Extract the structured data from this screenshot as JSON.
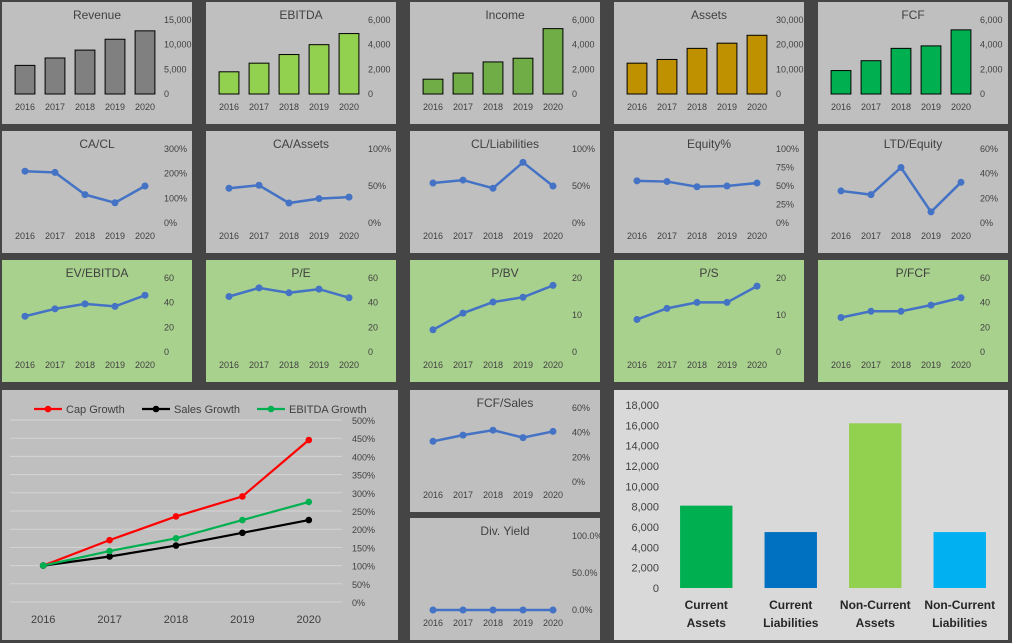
{
  "colors": {
    "gray_panel": "#bfbfbf",
    "green_panel": "#a9d18e",
    "light_panel": "#d9d9d9",
    "line_blue": "#4472c4",
    "bar_gray": "#808080",
    "bar_lightgreen": "#92d050",
    "bar_olive": "#70ad47",
    "bar_gold": "#bf9000",
    "bar_green": "#00b050"
  },
  "years": [
    "2016",
    "2017",
    "2018",
    "2019",
    "2020"
  ],
  "chart_data": [
    {
      "id": "revenue",
      "type": "bar",
      "title": "Revenue",
      "categories": [
        "2016",
        "2017",
        "2018",
        "2019",
        "2020"
      ],
      "values": [
        5800,
        7300,
        8900,
        11100,
        12800
      ],
      "ylim": [
        0,
        15000
      ],
      "ticks": [
        "0",
        "5,000",
        "10,000",
        "15,000"
      ],
      "color": "#808080"
    },
    {
      "id": "ebitda",
      "type": "bar",
      "title": "EBITDA",
      "categories": [
        "2016",
        "2017",
        "2018",
        "2019",
        "2020"
      ],
      "values": [
        1800,
        2500,
        3200,
        4000,
        4900
      ],
      "ylim": [
        0,
        6000
      ],
      "ticks": [
        "0",
        "2,000",
        "4,000",
        "6,000"
      ],
      "color": "#92d050"
    },
    {
      "id": "income",
      "type": "bar",
      "title": "Income",
      "categories": [
        "2016",
        "2017",
        "2018",
        "2019",
        "2020"
      ],
      "values": [
        1200,
        1700,
        2600,
        2900,
        5300
      ],
      "ylim": [
        0,
        6000
      ],
      "ticks": [
        "0",
        "2,000",
        "4,000",
        "6,000"
      ],
      "color": "#70ad47"
    },
    {
      "id": "assets",
      "type": "bar",
      "title": "Assets",
      "categories": [
        "2016",
        "2017",
        "2018",
        "2019",
        "2020"
      ],
      "values": [
        12500,
        14000,
        18500,
        20600,
        23800
      ],
      "ylim": [
        0,
        30000
      ],
      "ticks": [
        "0",
        "10,000",
        "20,000",
        "30,000"
      ],
      "color": "#bf9000"
    },
    {
      "id": "fcf",
      "type": "bar",
      "title": "FCF",
      "categories": [
        "2016",
        "2017",
        "2018",
        "2019",
        "2020"
      ],
      "values": [
        1900,
        2700,
        3700,
        3900,
        5200
      ],
      "ylim": [
        0,
        6000
      ],
      "ticks": [
        "0",
        "2,000",
        "4,000",
        "6,000"
      ],
      "color": "#00b050"
    },
    {
      "id": "ca_cl",
      "type": "line",
      "title": "CA/CL",
      "categories": [
        "2016",
        "2017",
        "2018",
        "2019",
        "2020"
      ],
      "values": [
        2.1,
        2.05,
        1.15,
        0.82,
        1.5
      ],
      "ylim": [
        0,
        3
      ],
      "ticks": [
        "0%",
        "100%",
        "200%",
        "300%"
      ],
      "color": "#4472c4"
    },
    {
      "id": "ca_assets",
      "type": "line",
      "title": "CA/Assets",
      "categories": [
        "2016",
        "2017",
        "2018",
        "2019",
        "2020"
      ],
      "values": [
        0.47,
        0.51,
        0.27,
        0.33,
        0.35
      ],
      "ylim": [
        0,
        1
      ],
      "ticks": [
        "0%",
        "50%",
        "100%"
      ],
      "color": "#4472c4"
    },
    {
      "id": "cl_liabilities",
      "type": "line",
      "title": "CL/Liabilities",
      "categories": [
        "2016",
        "2017",
        "2018",
        "2019",
        "2020"
      ],
      "values": [
        0.54,
        0.58,
        0.47,
        0.82,
        0.5
      ],
      "ylim": [
        0,
        1
      ],
      "ticks": [
        "0%",
        "50%",
        "100%"
      ],
      "color": "#4472c4"
    },
    {
      "id": "equity_pct",
      "type": "line",
      "title": "Equity%",
      "categories": [
        "2016",
        "2017",
        "2018",
        "2019",
        "2020"
      ],
      "values": [
        0.57,
        0.56,
        0.49,
        0.5,
        0.54
      ],
      "ylim": [
        0,
        1
      ],
      "ticks": [
        "0%",
        "25%",
        "50%",
        "75%",
        "100%"
      ],
      "color": "#4472c4"
    },
    {
      "id": "ltd_equity",
      "type": "line",
      "title": "LTD/Equity",
      "categories": [
        "2016",
        "2017",
        "2018",
        "2019",
        "2020"
      ],
      "values": [
        0.26,
        0.23,
        0.45,
        0.09,
        0.33
      ],
      "ylim": [
        0,
        0.6
      ],
      "ticks": [
        "0%",
        "20%",
        "40%",
        "60%"
      ],
      "color": "#4472c4"
    },
    {
      "id": "ev_ebitda",
      "type": "line",
      "title": "EV/EBITDA",
      "categories": [
        "2016",
        "2017",
        "2018",
        "2019",
        "2020"
      ],
      "values": [
        29,
        35,
        39,
        37,
        46
      ],
      "ylim": [
        0,
        60
      ],
      "ticks": [
        "0",
        "20",
        "40",
        "60"
      ],
      "color": "#4472c4"
    },
    {
      "id": "pe",
      "type": "line",
      "title": "P/E",
      "categories": [
        "2016",
        "2017",
        "2018",
        "2019",
        "2020"
      ],
      "values": [
        45,
        52,
        48,
        51,
        44
      ],
      "ylim": [
        0,
        60
      ],
      "ticks": [
        "0",
        "20",
        "40",
        "60"
      ],
      "color": "#4472c4"
    },
    {
      "id": "pbv",
      "type": "line",
      "title": "P/BV",
      "categories": [
        "2016",
        "2017",
        "2018",
        "2019",
        "2020"
      ],
      "values": [
        6,
        10.5,
        13.5,
        14.8,
        18
      ],
      "ylim": [
        0,
        20
      ],
      "ticks": [
        "0",
        "10",
        "20"
      ],
      "color": "#4472c4"
    },
    {
      "id": "ps",
      "type": "line",
      "title": "P/S",
      "categories": [
        "2016",
        "2017",
        "2018",
        "2019",
        "2020"
      ],
      "values": [
        8.8,
        11.8,
        13.4,
        13.4,
        17.8
      ],
      "ylim": [
        0,
        20
      ],
      "ticks": [
        "0",
        "10",
        "20"
      ],
      "color": "#4472c4"
    },
    {
      "id": "pfcf",
      "type": "line",
      "title": "P/FCF",
      "categories": [
        "2016",
        "2017",
        "2018",
        "2019",
        "2020"
      ],
      "values": [
        28,
        33,
        33,
        38,
        44
      ],
      "ylim": [
        0,
        60
      ],
      "ticks": [
        "0",
        "20",
        "40",
        "60"
      ],
      "color": "#4472c4"
    },
    {
      "id": "growth",
      "type": "line",
      "title": "",
      "categories": [
        "2016",
        "2017",
        "2018",
        "2019",
        "2020"
      ],
      "ylim": [
        0,
        5
      ],
      "ticks": [
        "0%",
        "50%",
        "100%",
        "150%",
        "200%",
        "250%",
        "300%",
        "350%",
        "400%",
        "450%",
        "500%"
      ],
      "grid": true,
      "legend": "top",
      "series": [
        {
          "name": "Cap Growth",
          "values": [
            1.0,
            1.7,
            2.35,
            2.9,
            4.45
          ],
          "color": "#ff0000"
        },
        {
          "name": "Sales Growth",
          "values": [
            1.0,
            1.25,
            1.55,
            1.9,
            2.25
          ],
          "color": "#000000"
        },
        {
          "name": "EBITDA Growth",
          "values": [
            1.0,
            1.4,
            1.75,
            2.25,
            2.75
          ],
          "color": "#00b050"
        }
      ]
    },
    {
      "id": "fcf_sales",
      "type": "line",
      "title": "FCF/Sales",
      "categories": [
        "2016",
        "2017",
        "2018",
        "2019",
        "2020"
      ],
      "values": [
        0.33,
        0.38,
        0.42,
        0.36,
        0.41
      ],
      "ylim": [
        0,
        0.6
      ],
      "ticks": [
        "0%",
        "20%",
        "40%",
        "60%"
      ],
      "color": "#4472c4"
    },
    {
      "id": "div_yield",
      "type": "line",
      "title": "Div. Yield",
      "categories": [
        "2016",
        "2017",
        "2018",
        "2019",
        "2020"
      ],
      "values": [
        0,
        0,
        0,
        0,
        0
      ],
      "ylim": [
        0,
        1
      ],
      "ticks": [
        "0.0%",
        "50.0%",
        "100.0%"
      ],
      "color": "#4472c4"
    },
    {
      "id": "balance",
      "type": "bar",
      "title": "",
      "categories": [
        [
          "Current",
          "Assets"
        ],
        [
          "Current",
          "Liabilities"
        ],
        [
          "Non-Current",
          "Assets"
        ],
        [
          "Non-Current",
          "Liabilities"
        ]
      ],
      "values": [
        8100,
        5500,
        16200,
        5500
      ],
      "colors": [
        "#00b050",
        "#0070c0",
        "#92d050",
        "#00b0f0"
      ],
      "ylim": [
        0,
        18000
      ],
      "ticks": [
        "0",
        "2,000",
        "4,000",
        "6,000",
        "8,000",
        "10,000",
        "12,000",
        "14,000",
        "16,000",
        "18,000"
      ]
    }
  ]
}
